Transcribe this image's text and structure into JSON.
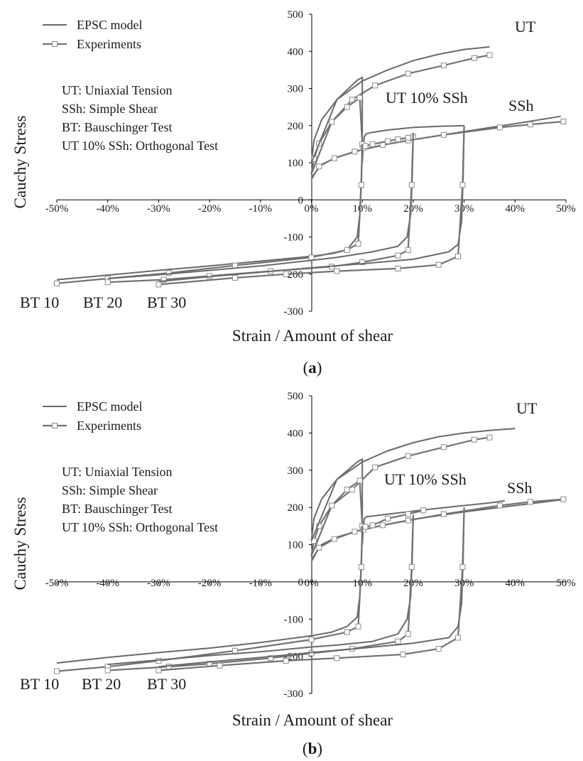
{
  "chart_data": [
    {
      "panel": "a",
      "type": "line",
      "xlabel": "Strain / Amount of shear",
      "ylabel": "Cauchy Stress",
      "xlim": [
        -0.5,
        0.5
      ],
      "ylim": [
        -300,
        500
      ],
      "x_ticks": [
        "-50%",
        "-40%",
        "-30%",
        "-20%",
        "-10%",
        "0%",
        "10%",
        "20%",
        "30%",
        "40%",
        "50%"
      ],
      "y_ticks": [
        "500",
        "400",
        "300",
        "200",
        "100",
        "0",
        "-100",
        "-200",
        "-300"
      ],
      "legend": {
        "placement": "top-left",
        "entries": [
          "EPSC model",
          "Experiments"
        ]
      },
      "notes": [
        "UT: Uniaxial Tension",
        "SSh: Simple Shear",
        "BT: Bauschinger Test",
        "UT 10% SSh: Orthogonal Test"
      ],
      "curve_labels": {
        "ut": "UT",
        "ortho": "UT 10% SSh",
        "ssh": "SSh",
        "bt10": "BT 10",
        "bt20": "BT 20",
        "bt30": "BT 30"
      },
      "series": [
        {
          "name": "EPSC model",
          "curve": "UT",
          "x": [
            0,
            0.005,
            0.02,
            0.05,
            0.1,
            0.15,
            0.2,
            0.25,
            0.3,
            0.35
          ],
          "y": [
            100,
            160,
            215,
            270,
            320,
            350,
            375,
            392,
            405,
            412
          ]
        },
        {
          "name": "Experiments",
          "curve": "UT",
          "x": [
            0,
            0.005,
            0.015,
            0.04,
            0.08,
            0.125,
            0.19,
            0.26,
            0.32,
            0.35
          ],
          "y": [
            70,
            110,
            152,
            210,
            270,
            308,
            340,
            362,
            382,
            390
          ]
        },
        {
          "name": "EPSC model",
          "curve": "SSh",
          "x": [
            0,
            0.02,
            0.05,
            0.1,
            0.15,
            0.2,
            0.3,
            0.4,
            0.49
          ],
          "y": [
            60,
            95,
            115,
            135,
            150,
            162,
            184,
            205,
            225
          ]
        },
        {
          "name": "Experiments",
          "curve": "SSh",
          "x": [
            0,
            0.015,
            0.045,
            0.085,
            0.14,
            0.19,
            0.26,
            0.37,
            0.43,
            0.495
          ],
          "y": [
            55,
            90,
            112,
            130,
            148,
            160,
            175,
            195,
            203,
            211
          ]
        },
        {
          "name": "EPSC model",
          "curve": "UT 10% SSh",
          "x": [
            0,
            0.05,
            0.09,
            0.1,
            0.1,
            0.102,
            0.104,
            0.108,
            0.12,
            0.15,
            0.2,
            0.25,
            0.3
          ],
          "y": [
            100,
            270,
            322,
            330,
            100,
            150,
            170,
            178,
            182,
            188,
            195,
            198,
            200
          ]
        },
        {
          "name": "Experiments",
          "curve": "UT 10% SSh",
          "x": [
            0,
            0.04,
            0.07,
            0.095,
            0.1,
            0.102,
            0.106,
            0.12,
            0.15,
            0.17,
            0.19,
            0.2
          ],
          "y": [
            70,
            210,
            250,
            275,
            150,
            140,
            145,
            150,
            158,
            163,
            167,
            170
          ]
        },
        {
          "name": "EPSC model",
          "curve": "BT 10",
          "x": [
            0.1,
            0.098,
            0.095,
            0.09,
            0.07,
            0.04,
            0,
            -0.1,
            -0.2,
            -0.3,
            -0.4,
            -0.5
          ],
          "y": [
            140,
            60,
            -40,
            -100,
            -135,
            -145,
            -152,
            -165,
            -178,
            -190,
            -203,
            -215
          ]
        },
        {
          "name": "Experiments",
          "curve": "BT 10",
          "x": [
            0.1,
            0.098,
            0.092,
            0.07,
            0,
            -0.15,
            -0.28,
            -0.4,
            -0.5
          ],
          "y": [
            150,
            40,
            -118,
            -135,
            -155,
            -177,
            -197,
            -212,
            -225
          ]
        },
        {
          "name": "EPSC model",
          "curve": "BT 20",
          "x": [
            0.2,
            0.198,
            0.195,
            0.188,
            0.17,
            0.12,
            0.05,
            0,
            -0.1,
            -0.2,
            -0.3,
            -0.4
          ],
          "y": [
            175,
            60,
            -40,
            -100,
            -125,
            -140,
            -155,
            -163,
            -178,
            -190,
            -202,
            -212
          ]
        },
        {
          "name": "Experiments",
          "curve": "BT 20",
          "x": [
            0.2,
            0.197,
            0.19,
            0.17,
            0.1,
            0.04,
            -0.08,
            -0.2,
            -0.29,
            -0.4
          ],
          "y": [
            180,
            40,
            -135,
            -150,
            -168,
            -180,
            -192,
            -205,
            -215,
            -222
          ]
        },
        {
          "name": "EPSC model",
          "curve": "BT 30",
          "x": [
            0.3,
            0.298,
            0.295,
            0.288,
            0.27,
            0.2,
            0.1,
            0,
            -0.1,
            -0.2,
            -0.3
          ],
          "y": [
            195,
            60,
            -60,
            -120,
            -140,
            -160,
            -172,
            -183,
            -195,
            -207,
            -220
          ]
        },
        {
          "name": "Experiments",
          "curve": "BT 30",
          "x": [
            0.3,
            0.297,
            0.288,
            0.25,
            0.17,
            0.05,
            -0.05,
            -0.15,
            -0.3
          ],
          "y": [
            200,
            40,
            -152,
            -175,
            -185,
            -192,
            -200,
            -210,
            -228
          ]
        }
      ]
    },
    {
      "panel": "b",
      "type": "line",
      "xlabel": "Strain / Amount of shear",
      "ylabel": "Cauchy Stress",
      "xlim": [
        -0.5,
        0.5
      ],
      "ylim": [
        -300,
        500
      ],
      "x_ticks": [
        "-50%",
        "-40%",
        "-30%",
        "-20%",
        "-10%",
        "0%",
        "10%",
        "20%",
        "30%",
        "40%",
        "50%"
      ],
      "y_ticks": [
        "500",
        "400",
        "300",
        "200",
        "100",
        "0",
        "-100",
        "-200",
        "-300"
      ],
      "legend": {
        "placement": "top-left",
        "entries": [
          "EPSC model",
          "Experiments"
        ]
      },
      "notes": [
        "UT: Uniaxial Tension",
        "SSh: Simple Shear",
        "BT: Bauschinger Test",
        "UT 10% SSh: Orthogonal Test"
      ],
      "curve_labels": {
        "ut": "UT",
        "ortho": "UT 10% SSh",
        "ssh": "SSh",
        "bt10": "BT 10",
        "bt20": "BT 20",
        "bt30": "BT 30"
      },
      "series": [
        {
          "name": "EPSC model",
          "curve": "UT",
          "x": [
            0,
            0.005,
            0.02,
            0.05,
            0.1,
            0.15,
            0.2,
            0.25,
            0.3,
            0.35,
            0.4
          ],
          "y": [
            110,
            170,
            222,
            275,
            322,
            352,
            374,
            390,
            400,
            407,
            412
          ]
        },
        {
          "name": "Experiments",
          "curve": "UT",
          "x": [
            0,
            0.005,
            0.015,
            0.04,
            0.08,
            0.125,
            0.19,
            0.26,
            0.32,
            0.35
          ],
          "y": [
            70,
            110,
            150,
            205,
            248,
            308,
            338,
            362,
            382,
            388
          ]
        },
        {
          "name": "EPSC model",
          "curve": "SSh",
          "x": [
            0,
            0.02,
            0.05,
            0.1,
            0.15,
            0.2,
            0.3,
            0.4,
            0.5
          ],
          "y": [
            60,
            100,
            120,
            140,
            155,
            168,
            188,
            205,
            222
          ]
        },
        {
          "name": "Experiments",
          "curve": "SSh",
          "x": [
            0,
            0.015,
            0.045,
            0.085,
            0.14,
            0.19,
            0.26,
            0.37,
            0.43,
            0.495
          ],
          "y": [
            55,
            92,
            115,
            135,
            152,
            165,
            182,
            205,
            215,
            222
          ]
        },
        {
          "name": "EPSC model",
          "curve": "UT 10% SSh",
          "x": [
            0,
            0.05,
            0.09,
            0.1,
            0.1,
            0.102,
            0.104,
            0.108,
            0.12,
            0.15,
            0.2,
            0.25,
            0.3,
            0.35,
            0.38
          ],
          "y": [
            110,
            275,
            322,
            330,
            100,
            150,
            170,
            175,
            177,
            182,
            190,
            198,
            205,
            212,
            218
          ]
        },
        {
          "name": "Experiments",
          "curve": "UT 10% SSh",
          "x": [
            0,
            0.04,
            0.07,
            0.095,
            0.1,
            0.102,
            0.106,
            0.12,
            0.15,
            0.19,
            0.22
          ],
          "y": [
            70,
            205,
            248,
            272,
            150,
            140,
            148,
            152,
            170,
            182,
            192
          ]
        },
        {
          "name": "EPSC model",
          "curve": "BT 10",
          "x": [
            0.1,
            0.098,
            0.095,
            0.09,
            0.07,
            0.04,
            0,
            -0.1,
            -0.2,
            -0.3,
            -0.4,
            -0.5
          ],
          "y": [
            140,
            60,
            -40,
            -95,
            -120,
            -135,
            -145,
            -163,
            -178,
            -190,
            -203,
            -218
          ]
        },
        {
          "name": "Experiments",
          "curve": "BT 10",
          "x": [
            0.1,
            0.098,
            0.092,
            0.07,
            0,
            -0.15,
            -0.3,
            -0.4,
            -0.5
          ],
          "y": [
            150,
            40,
            -120,
            -135,
            -155,
            -185,
            -212,
            -228,
            -240
          ]
        },
        {
          "name": "EPSC model",
          "curve": "BT 20",
          "x": [
            0.2,
            0.198,
            0.195,
            0.188,
            0.17,
            0.12,
            0.05,
            0,
            -0.1,
            -0.2,
            -0.3,
            -0.4
          ],
          "y": [
            175,
            60,
            -40,
            -100,
            -140,
            -160,
            -170,
            -175,
            -188,
            -198,
            -210,
            -222
          ]
        },
        {
          "name": "Experiments",
          "curve": "BT 20",
          "x": [
            0.2,
            0.197,
            0.19,
            0.17,
            0.08,
            0,
            -0.08,
            -0.2,
            -0.28,
            -0.4
          ],
          "y": [
            180,
            40,
            -140,
            -160,
            -180,
            -192,
            -205,
            -220,
            -228,
            -238
          ]
        },
        {
          "name": "EPSC model",
          "curve": "BT 30",
          "x": [
            0.3,
            0.298,
            0.295,
            0.288,
            0.27,
            0.2,
            0.1,
            0,
            -0.1,
            -0.2,
            -0.3
          ],
          "y": [
            195,
            60,
            -60,
            -120,
            -150,
            -165,
            -178,
            -190,
            -203,
            -215,
            -228
          ]
        },
        {
          "name": "Experiments",
          "curve": "BT 30",
          "x": [
            0.3,
            0.297,
            0.288,
            0.25,
            0.18,
            0.05,
            -0.05,
            -0.18,
            -0.3
          ],
          "y": [
            200,
            40,
            -150,
            -180,
            -195,
            -205,
            -212,
            -225,
            -238
          ]
        }
      ]
    }
  ]
}
